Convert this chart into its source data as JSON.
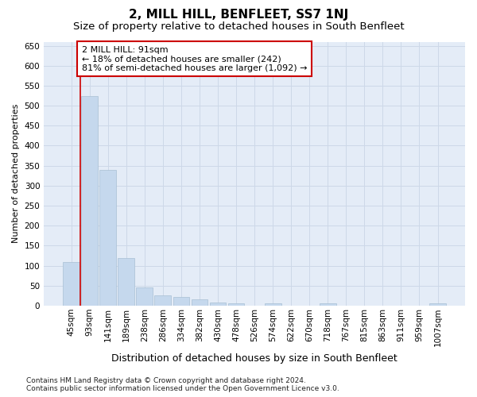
{
  "title": "2, MILL HILL, BENFLEET, SS7 1NJ",
  "subtitle": "Size of property relative to detached houses in South Benfleet",
  "xlabel": "Distribution of detached houses by size in South Benfleet",
  "ylabel": "Number of detached properties",
  "categories": [
    "45sqm",
    "93sqm",
    "141sqm",
    "189sqm",
    "238sqm",
    "286sqm",
    "334sqm",
    "382sqm",
    "430sqm",
    "478sqm",
    "526sqm",
    "574sqm",
    "622sqm",
    "670sqm",
    "718sqm",
    "767sqm",
    "815sqm",
    "863sqm",
    "911sqm",
    "959sqm",
    "1007sqm"
  ],
  "values": [
    110,
    525,
    340,
    120,
    45,
    25,
    22,
    15,
    8,
    5,
    0,
    5,
    0,
    0,
    5,
    0,
    0,
    0,
    0,
    0,
    5
  ],
  "bar_color": "#c5d8ed",
  "bar_edgecolor": "#a8bfd4",
  "annotation_text": "2 MILL HILL: 91sqm\n← 18% of detached houses are smaller (242)\n81% of semi-detached houses are larger (1,092) →",
  "annotation_box_facecolor": "#ffffff",
  "annotation_box_edgecolor": "#cc0000",
  "grid_color": "#cdd8e8",
  "bg_color": "#e4ecf7",
  "footer": "Contains HM Land Registry data © Crown copyright and database right 2024.\nContains public sector information licensed under the Open Government Licence v3.0.",
  "ylim": [
    0,
    660
  ],
  "yticks": [
    0,
    50,
    100,
    150,
    200,
    250,
    300,
    350,
    400,
    450,
    500,
    550,
    600,
    650
  ],
  "title_fontsize": 11,
  "subtitle_fontsize": 9.5,
  "xlabel_fontsize": 9,
  "ylabel_fontsize": 8,
  "tick_fontsize": 7.5,
  "annotation_fontsize": 8,
  "footer_fontsize": 6.5,
  "vline_x": 0.5,
  "vline_color": "#cc0000"
}
